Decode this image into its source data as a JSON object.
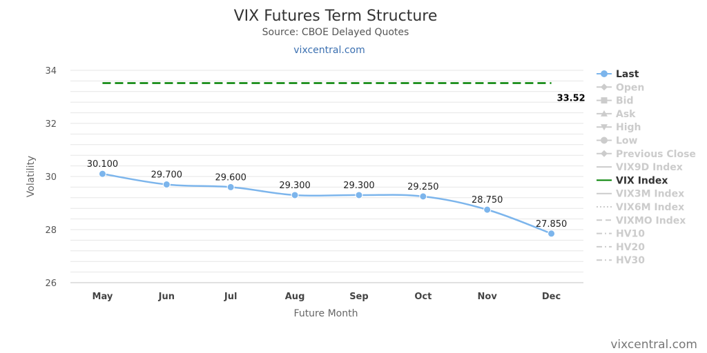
{
  "header": {
    "title": "VIX Futures Term Structure",
    "subtitle": "Source: CBOE Delayed Quotes",
    "link": "vixcentral.com"
  },
  "credit": "vixcentral.com",
  "colors": {
    "last": "#7cb5ec",
    "vix_index": "#008000",
    "inactive": "#cccccc",
    "active_text": "#333333"
  },
  "legend": [
    {
      "label": "Last",
      "symbol": "line-circle",
      "active": true
    },
    {
      "label": "Open",
      "symbol": "line-diamond",
      "active": false
    },
    {
      "label": "Bid",
      "symbol": "line-square",
      "active": false
    },
    {
      "label": "Ask",
      "symbol": "line-triangle",
      "active": false
    },
    {
      "label": "High",
      "symbol": "line-triangle-down",
      "active": false
    },
    {
      "label": "Low",
      "symbol": "line-circle",
      "active": false
    },
    {
      "label": "Previous Close",
      "symbol": "line-diamond",
      "active": false
    },
    {
      "label": "VIX9D Index",
      "symbol": "line",
      "active": false
    },
    {
      "label": "VIX Index",
      "symbol": "line",
      "active": true
    },
    {
      "label": "VIX3M Index",
      "symbol": "line",
      "active": false
    },
    {
      "label": "VIX6M Index",
      "symbol": "dotted",
      "active": false
    },
    {
      "label": "VIXMO Index",
      "symbol": "dashed",
      "active": false
    },
    {
      "label": "HV10",
      "symbol": "dash-dot",
      "active": false
    },
    {
      "label": "HV20",
      "symbol": "dash-dot",
      "active": false
    },
    {
      "label": "HV30",
      "symbol": "dash-dot",
      "active": false
    }
  ],
  "chart_data": {
    "type": "line",
    "title": "VIX Futures Term Structure",
    "subtitle": "Source: CBOE Delayed Quotes",
    "xlabel": "Future Month",
    "ylabel": "Volatility",
    "categories": [
      "May",
      "Jun",
      "Jul",
      "Aug",
      "Sep",
      "Oct",
      "Nov",
      "Dec"
    ],
    "ylim": [
      26,
      34
    ],
    "yticks": [
      26,
      28,
      30,
      32,
      34
    ],
    "grid": true,
    "legend_position": "right",
    "series": [
      {
        "name": "Last",
        "values": [
          30.1,
          29.7,
          29.6,
          29.3,
          29.3,
          29.25,
          28.75,
          27.85
        ],
        "labels": [
          "30.100",
          "29.700",
          "29.600",
          "29.300",
          "29.300",
          "29.250",
          "28.750",
          "27.850"
        ],
        "color": "#7cb5ec",
        "style": "smooth-line-with-markers"
      },
      {
        "name": "VIX Index",
        "value": 33.52,
        "label": "33.52",
        "color": "#008000",
        "style": "dashed-horizontal"
      }
    ]
  }
}
